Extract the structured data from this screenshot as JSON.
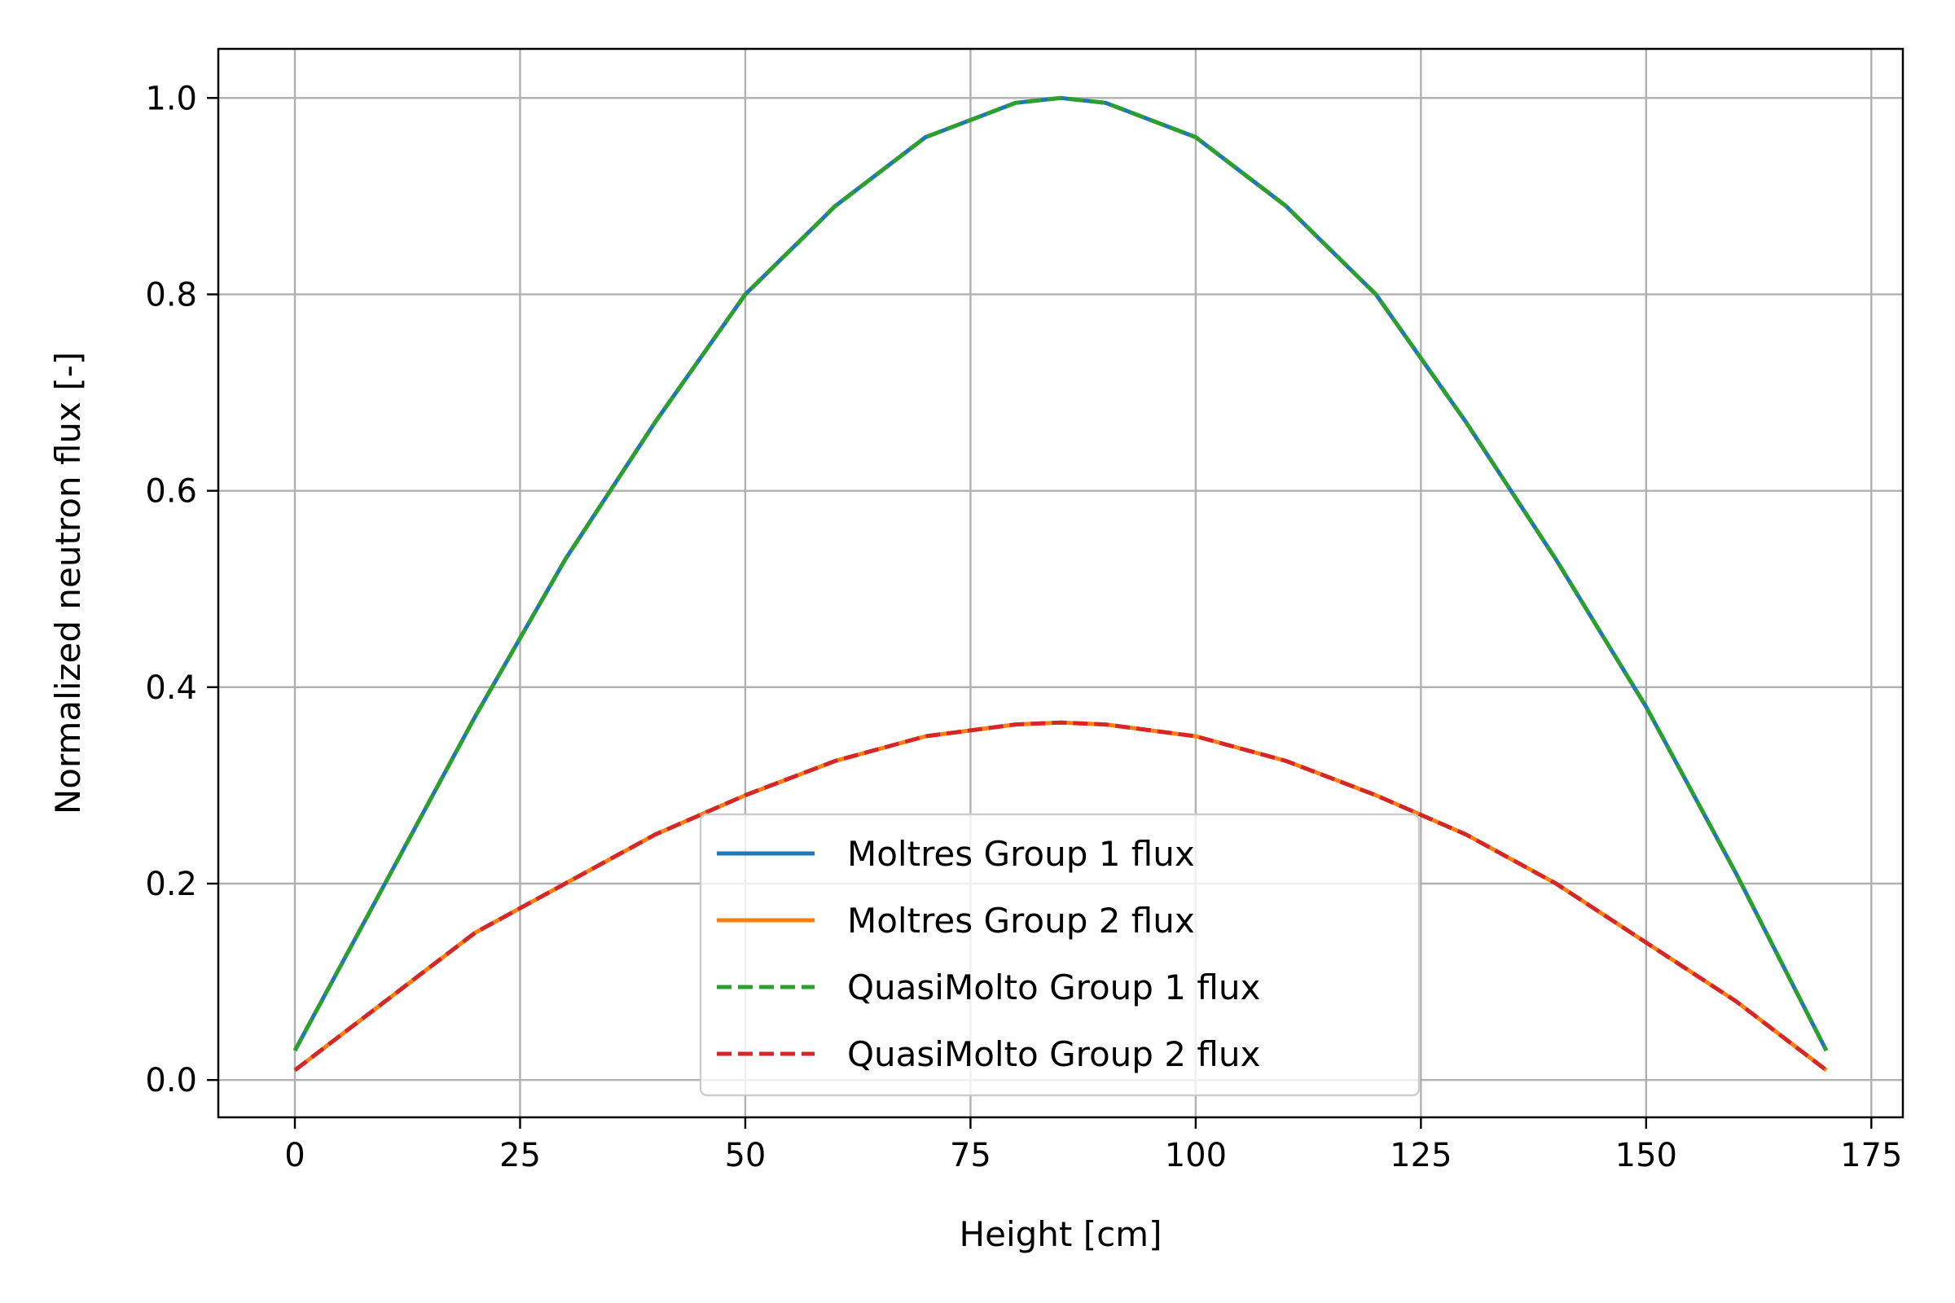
{
  "chart_data": {
    "type": "line",
    "xlabel": "Height [cm]",
    "ylabel": "Normalized neutron flux [-]",
    "xlim": [
      -8.5,
      178.5
    ],
    "ylim": [
      -0.038,
      1.05
    ],
    "xticks": [
      0,
      25,
      50,
      75,
      100,
      125,
      150,
      175
    ],
    "xtick_labels": [
      "0",
      "25",
      "50",
      "75",
      "100",
      "125",
      "150",
      "175"
    ],
    "yticks": [
      0.0,
      0.2,
      0.4,
      0.6,
      0.8,
      1.0
    ],
    "ytick_labels": [
      "0.0",
      "0.2",
      "0.4",
      "0.6",
      "0.8",
      "1.0"
    ],
    "grid": true,
    "legend_position": "lower-center",
    "x": [
      0,
      10,
      20,
      30,
      40,
      50,
      60,
      70,
      80,
      85,
      90,
      100,
      110,
      120,
      130,
      140,
      150,
      160,
      170
    ],
    "series": [
      {
        "name": "Moltres Group 1 flux",
        "color": "#1f77b4",
        "style": "solid",
        "values": [
          0.03,
          0.2,
          0.37,
          0.53,
          0.67,
          0.8,
          0.89,
          0.96,
          0.995,
          1.0,
          0.995,
          0.96,
          0.89,
          0.8,
          0.67,
          0.53,
          0.38,
          0.21,
          0.03
        ]
      },
      {
        "name": "Moltres Group 2 flux",
        "color": "#ff7f0e",
        "style": "solid",
        "values": [
          0.01,
          0.08,
          0.15,
          0.2,
          0.25,
          0.29,
          0.325,
          0.35,
          0.362,
          0.364,
          0.362,
          0.35,
          0.325,
          0.29,
          0.25,
          0.2,
          0.14,
          0.08,
          0.01
        ]
      },
      {
        "name": "QuasiMolto Group 1 flux",
        "color": "#2ca02c",
        "style": "dashed",
        "values": [
          0.03,
          0.2,
          0.37,
          0.53,
          0.67,
          0.8,
          0.89,
          0.96,
          0.995,
          1.0,
          0.995,
          0.96,
          0.89,
          0.8,
          0.67,
          0.53,
          0.38,
          0.21,
          0.03
        ]
      },
      {
        "name": "QuasiMolto Group 2 flux",
        "color": "#d62728",
        "style": "dashed",
        "values": [
          0.01,
          0.08,
          0.15,
          0.2,
          0.25,
          0.29,
          0.325,
          0.35,
          0.362,
          0.364,
          0.362,
          0.35,
          0.325,
          0.29,
          0.25,
          0.2,
          0.14,
          0.08,
          0.01
        ]
      }
    ]
  }
}
